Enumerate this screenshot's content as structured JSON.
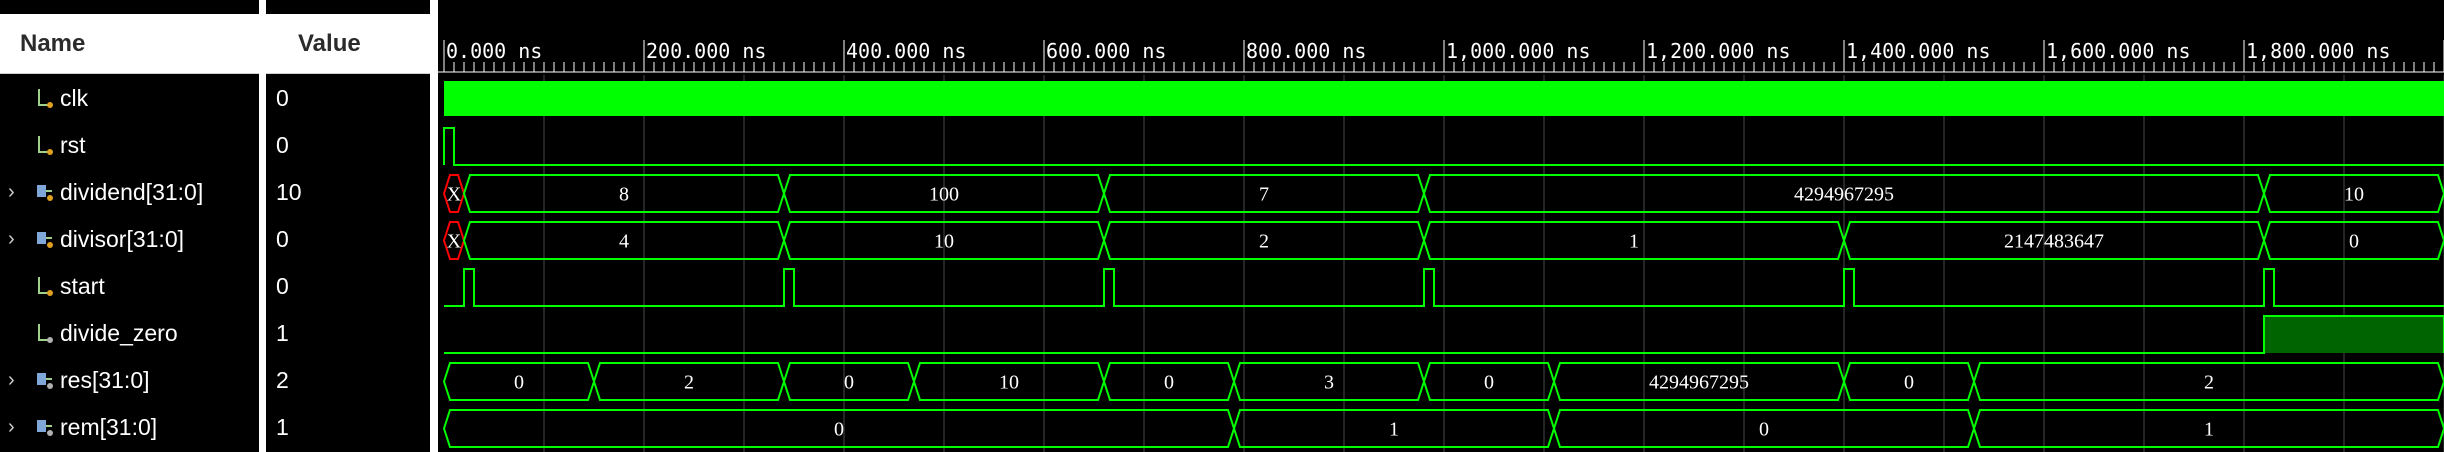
{
  "headers": {
    "name": "Name",
    "value": "Value"
  },
  "colors": {
    "wave": "#00ff00",
    "bus_x": "#ff0000",
    "grid": "#4a4a4a",
    "fill_high": "#006400"
  },
  "signals": [
    {
      "name": "clk",
      "value": "0",
      "icon": "wire-icon",
      "expandable": false
    },
    {
      "name": "rst",
      "value": "0",
      "icon": "wire-icon",
      "expandable": false
    },
    {
      "name": "dividend[31:0]",
      "value": "10",
      "icon": "bus-icon",
      "expandable": true
    },
    {
      "name": "divisor[31:0]",
      "value": "0",
      "icon": "bus-icon",
      "expandable": true
    },
    {
      "name": "start",
      "value": "0",
      "icon": "wire-icon",
      "expandable": false
    },
    {
      "name": "divide_zero",
      "value": "1",
      "icon": "output-wire-icon",
      "expandable": false
    },
    {
      "name": "res[31:0]",
      "value": "2",
      "icon": "bus-icon",
      "expandable": true
    },
    {
      "name": "rem[31:0]",
      "value": "1",
      "icon": "bus-icon",
      "expandable": true
    }
  ],
  "timeline": {
    "end_ns": 2000,
    "labels": [
      {
        "t": 0,
        "text": "0.000 ns"
      },
      {
        "t": 200,
        "text": "200.000 ns"
      },
      {
        "t": 400,
        "text": "400.000 ns"
      },
      {
        "t": 600,
        "text": "600.000 ns"
      },
      {
        "t": 800,
        "text": "800.000 ns"
      },
      {
        "t": 1000,
        "text": "1,000.000 ns"
      },
      {
        "t": 1200,
        "text": "1,200.000 ns"
      },
      {
        "t": 1400,
        "text": "1,400.000 ns"
      },
      {
        "t": 1600,
        "text": "1,600.000 ns"
      },
      {
        "t": 1800,
        "text": "1,800.000 ns"
      }
    ]
  },
  "waves": {
    "rst": [
      {
        "t0": 0,
        "t1": 10,
        "v": 1
      }
    ],
    "start": [
      {
        "t0": 20,
        "t1": 30,
        "v": 1
      },
      {
        "t0": 340,
        "t1": 350,
        "v": 1
      },
      {
        "t0": 660,
        "t1": 670,
        "v": 1
      },
      {
        "t0": 980,
        "t1": 990,
        "v": 1
      },
      {
        "t0": 1400,
        "t1": 1410,
        "v": 1
      },
      {
        "t0": 1820,
        "t1": 1830,
        "v": 1
      }
    ],
    "divide_zero": [
      {
        "t0": 1820,
        "t1": 2000,
        "v": 1
      }
    ],
    "buses": {
      "dividend": [
        {
          "t0": 0,
          "t1": 20,
          "v": "X",
          "x": true
        },
        {
          "t0": 20,
          "t1": 340,
          "v": "8"
        },
        {
          "t0": 340,
          "t1": 660,
          "v": "100"
        },
        {
          "t0": 660,
          "t1": 980,
          "v": "7"
        },
        {
          "t0": 980,
          "t1": 1820,
          "v": "4294967295"
        },
        {
          "t0": 1820,
          "t1": 2000,
          "v": "10"
        }
      ],
      "divisor": [
        {
          "t0": 0,
          "t1": 20,
          "v": "X",
          "x": true
        },
        {
          "t0": 20,
          "t1": 340,
          "v": "4"
        },
        {
          "t0": 340,
          "t1": 660,
          "v": "10"
        },
        {
          "t0": 660,
          "t1": 980,
          "v": "2"
        },
        {
          "t0": 980,
          "t1": 1400,
          "v": "1"
        },
        {
          "t0": 1400,
          "t1": 1820,
          "v": "2147483647"
        },
        {
          "t0": 1820,
          "t1": 2000,
          "v": "0"
        }
      ],
      "res": [
        {
          "t0": 0,
          "t1": 150,
          "v": "0"
        },
        {
          "t0": 150,
          "t1": 340,
          "v": "2"
        },
        {
          "t0": 340,
          "t1": 470,
          "v": "0"
        },
        {
          "t0": 470,
          "t1": 660,
          "v": "10"
        },
        {
          "t0": 660,
          "t1": 790,
          "v": "0"
        },
        {
          "t0": 790,
          "t1": 980,
          "v": "3"
        },
        {
          "t0": 980,
          "t1": 1110,
          "v": "0"
        },
        {
          "t0": 1110,
          "t1": 1400,
          "v": "4294967295"
        },
        {
          "t0": 1400,
          "t1": 1530,
          "v": "0"
        },
        {
          "t0": 1530,
          "t1": 2000,
          "v": "2"
        }
      ],
      "rem": [
        {
          "t0": 0,
          "t1": 790,
          "v": "0"
        },
        {
          "t0": 790,
          "t1": 1110,
          "v": "1"
        },
        {
          "t0": 1110,
          "t1": 1530,
          "v": "0"
        },
        {
          "t0": 1530,
          "t1": 2000,
          "v": "1"
        }
      ]
    }
  }
}
